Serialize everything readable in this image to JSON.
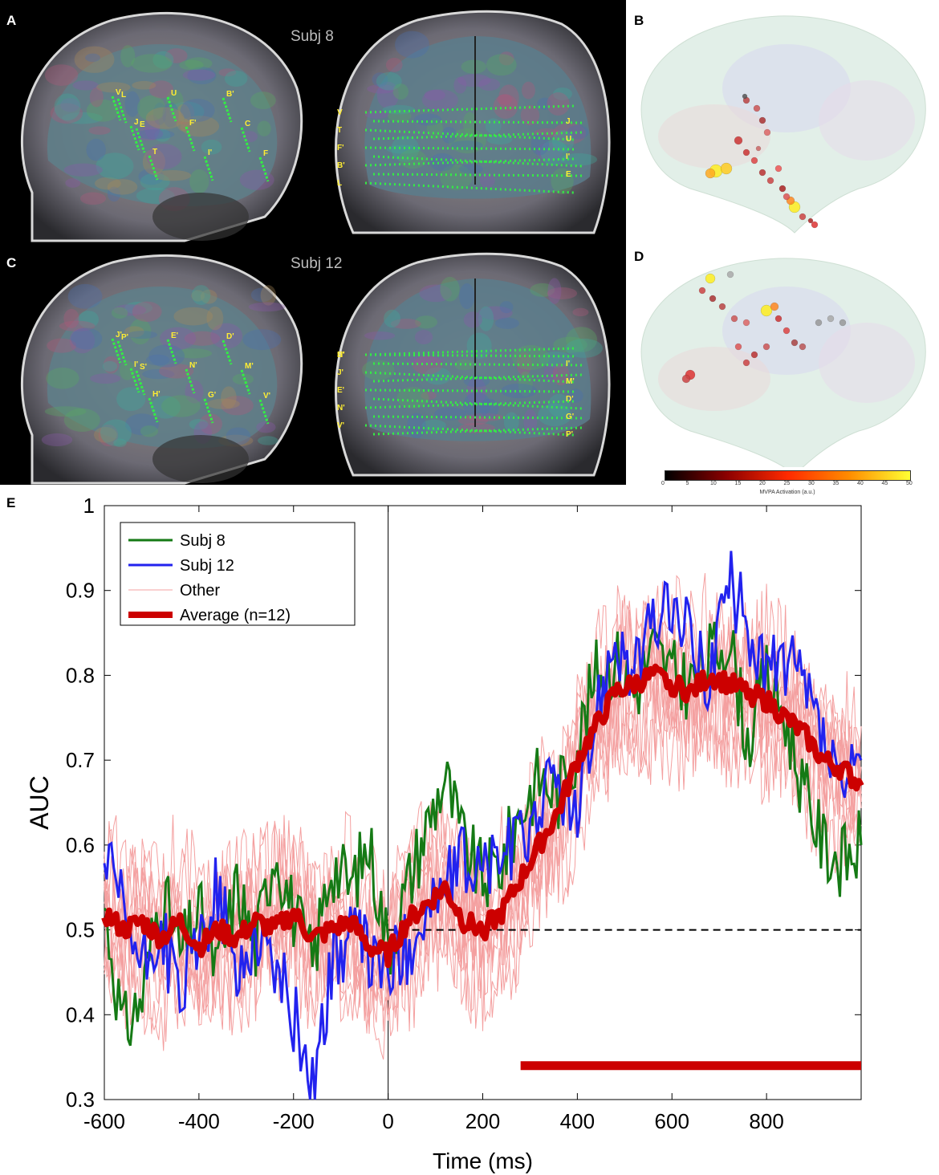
{
  "panels": {
    "a": {
      "letter": "A",
      "subject": "Subj 8",
      "sagittal_electrodes": [
        "V",
        "J",
        "T",
        "U",
        "F'",
        "I'",
        "B'",
        "C",
        "F",
        "L",
        "E"
      ],
      "coronal_electrodes": [
        "V",
        "J",
        "T",
        "U",
        "F'",
        "I'",
        "B'",
        "E",
        "L"
      ]
    },
    "b": {
      "letter": "B"
    },
    "c": {
      "letter": "C",
      "subject": "Subj 12",
      "sagittal_electrodes": [
        "J'",
        "I'",
        "H'",
        "E'",
        "N'",
        "G'",
        "D'",
        "M'",
        "V'",
        "P'",
        "S'"
      ],
      "coronal_electrodes": [
        "H'",
        "I'",
        "J'",
        "M'",
        "E'",
        "D'",
        "N'",
        "G'",
        "V'",
        "P'",
        "S'"
      ]
    },
    "d": {
      "letter": "D"
    },
    "e": {
      "letter": "E"
    }
  },
  "colorbar": {
    "label": "MVPA Activation (a.u.)",
    "ticks": [
      "0",
      "5",
      "10",
      "15",
      "20",
      "25",
      "30",
      "35",
      "40",
      "45",
      "50"
    ],
    "colors": [
      "#000000",
      "#8b0000",
      "#ff2a00",
      "#ff8c00",
      "#ffff33"
    ]
  },
  "colors": {
    "subj8": "#157a15",
    "subj12": "#2222ee",
    "other": "#f4a0a0",
    "average": "#cc0000",
    "significance": "#cc0000",
    "chance": "#000000"
  },
  "chart_data": {
    "type": "line",
    "xlabel": "Time (ms)",
    "ylabel": "AUC",
    "xlim": [
      -600,
      1000
    ],
    "ylim": [
      0.3,
      1.0
    ],
    "xticks": [
      -600,
      -400,
      -200,
      0,
      200,
      400,
      600,
      800
    ],
    "yticks": [
      0.3,
      0.4,
      0.5,
      0.6,
      0.7,
      0.8,
      0.9,
      1.0
    ],
    "ytick_labels": [
      "0.3",
      "0.4",
      "0.5",
      "0.6",
      "0.7",
      "0.8",
      "0.9",
      "1"
    ],
    "xtick_labels": [
      "-600",
      "-400",
      "-200",
      "0",
      "200",
      "400",
      "600",
      "800"
    ],
    "chance_level": 0.5,
    "stimulus_onset": 0,
    "significance_interval": [
      280,
      1000
    ],
    "significance_y": 0.34,
    "legend": [
      "Subj 8",
      "Subj 12",
      "Other",
      "Average (n=12)"
    ],
    "legend_position": "top-left",
    "series": [
      {
        "name": "Subj 8",
        "x": [
          -600,
          -560,
          -520,
          -480,
          -440,
          -400,
          -360,
          -320,
          -280,
          -240,
          -200,
          -160,
          -120,
          -80,
          -40,
          0,
          40,
          80,
          120,
          160,
          200,
          240,
          280,
          320,
          360,
          400,
          440,
          480,
          520,
          560,
          600,
          640,
          680,
          720,
          760,
          800,
          840,
          880,
          920,
          960,
          1000
        ],
        "values": [
          0.53,
          0.38,
          0.42,
          0.55,
          0.47,
          0.52,
          0.45,
          0.55,
          0.48,
          0.6,
          0.52,
          0.46,
          0.58,
          0.55,
          0.6,
          0.48,
          0.55,
          0.62,
          0.68,
          0.6,
          0.56,
          0.58,
          0.64,
          0.68,
          0.66,
          0.72,
          0.8,
          0.82,
          0.78,
          0.83,
          0.8,
          0.79,
          0.82,
          0.85,
          0.72,
          0.8,
          0.75,
          0.66,
          0.6,
          0.58,
          0.6
        ]
      },
      {
        "name": "Subj 12",
        "x": [
          -600,
          -560,
          -520,
          -480,
          -440,
          -400,
          -360,
          -320,
          -280,
          -240,
          -200,
          -160,
          -120,
          -80,
          -40,
          0,
          40,
          80,
          120,
          160,
          200,
          240,
          280,
          320,
          360,
          400,
          440,
          480,
          520,
          560,
          600,
          640,
          680,
          720,
          760,
          800,
          840,
          880,
          920,
          960,
          1000
        ],
        "values": [
          0.58,
          0.52,
          0.45,
          0.5,
          0.42,
          0.48,
          0.55,
          0.44,
          0.5,
          0.46,
          0.4,
          0.32,
          0.45,
          0.5,
          0.47,
          0.45,
          0.48,
          0.52,
          0.55,
          0.58,
          0.57,
          0.59,
          0.6,
          0.65,
          0.68,
          0.62,
          0.76,
          0.85,
          0.8,
          0.86,
          0.88,
          0.84,
          0.8,
          0.91,
          0.86,
          0.8,
          0.82,
          0.78,
          0.72,
          0.65,
          0.7
        ]
      },
      {
        "name": "Average (n=12)",
        "x": [
          -600,
          -560,
          -520,
          -480,
          -440,
          -400,
          -360,
          -320,
          -280,
          -240,
          -200,
          -160,
          -120,
          -80,
          -40,
          0,
          40,
          80,
          120,
          160,
          200,
          240,
          280,
          320,
          360,
          400,
          440,
          480,
          520,
          560,
          600,
          640,
          680,
          720,
          760,
          800,
          840,
          880,
          920,
          960,
          1000
        ],
        "values": [
          0.52,
          0.5,
          0.51,
          0.49,
          0.51,
          0.48,
          0.5,
          0.49,
          0.51,
          0.5,
          0.52,
          0.49,
          0.5,
          0.51,
          0.48,
          0.47,
          0.51,
          0.53,
          0.55,
          0.51,
          0.5,
          0.52,
          0.56,
          0.6,
          0.64,
          0.7,
          0.74,
          0.78,
          0.79,
          0.8,
          0.79,
          0.78,
          0.8,
          0.79,
          0.78,
          0.77,
          0.75,
          0.73,
          0.7,
          0.69,
          0.67
        ]
      }
    ],
    "other_series_count": 10
  }
}
